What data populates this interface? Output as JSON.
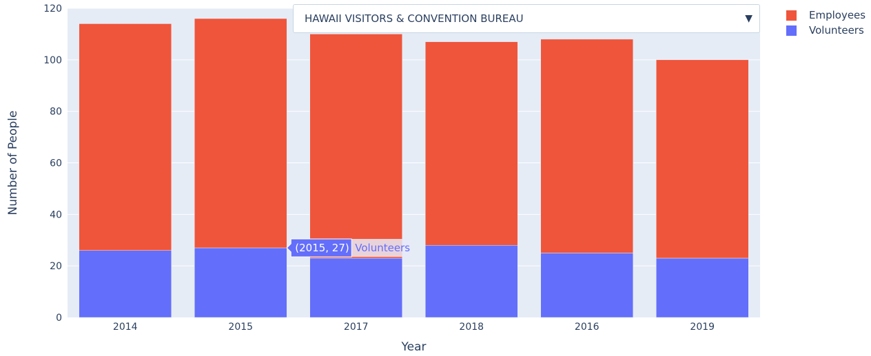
{
  "dropdown": {
    "selected": "HAWAII VISITORS & CONVENTION BUREAU",
    "arrow_icon": "triangle-down-icon"
  },
  "tooltip": {
    "label": "(2015, 27)",
    "series": "Volunteers",
    "category": "2015",
    "value": 27
  },
  "chart_data": {
    "type": "bar",
    "barmode": "stack",
    "categories": [
      "2014",
      "2015",
      "2017",
      "2018",
      "2016",
      "2019"
    ],
    "series": [
      {
        "name": "Volunteers",
        "color": "#636efa",
        "values": [
          26,
          27,
          23,
          28,
          25,
          23
        ]
      },
      {
        "name": "Employees",
        "color": "#ef553b",
        "values": [
          88,
          89,
          87,
          79,
          83,
          77
        ]
      }
    ],
    "xlabel": "Year",
    "ylabel": "Number of People",
    "ylim": [
      0,
      120
    ],
    "yticks": [
      0,
      20,
      40,
      60,
      80,
      100,
      120
    ],
    "grid": true,
    "legend": {
      "position": "top-right",
      "entries": [
        "Employees",
        "Volunteers"
      ]
    }
  }
}
